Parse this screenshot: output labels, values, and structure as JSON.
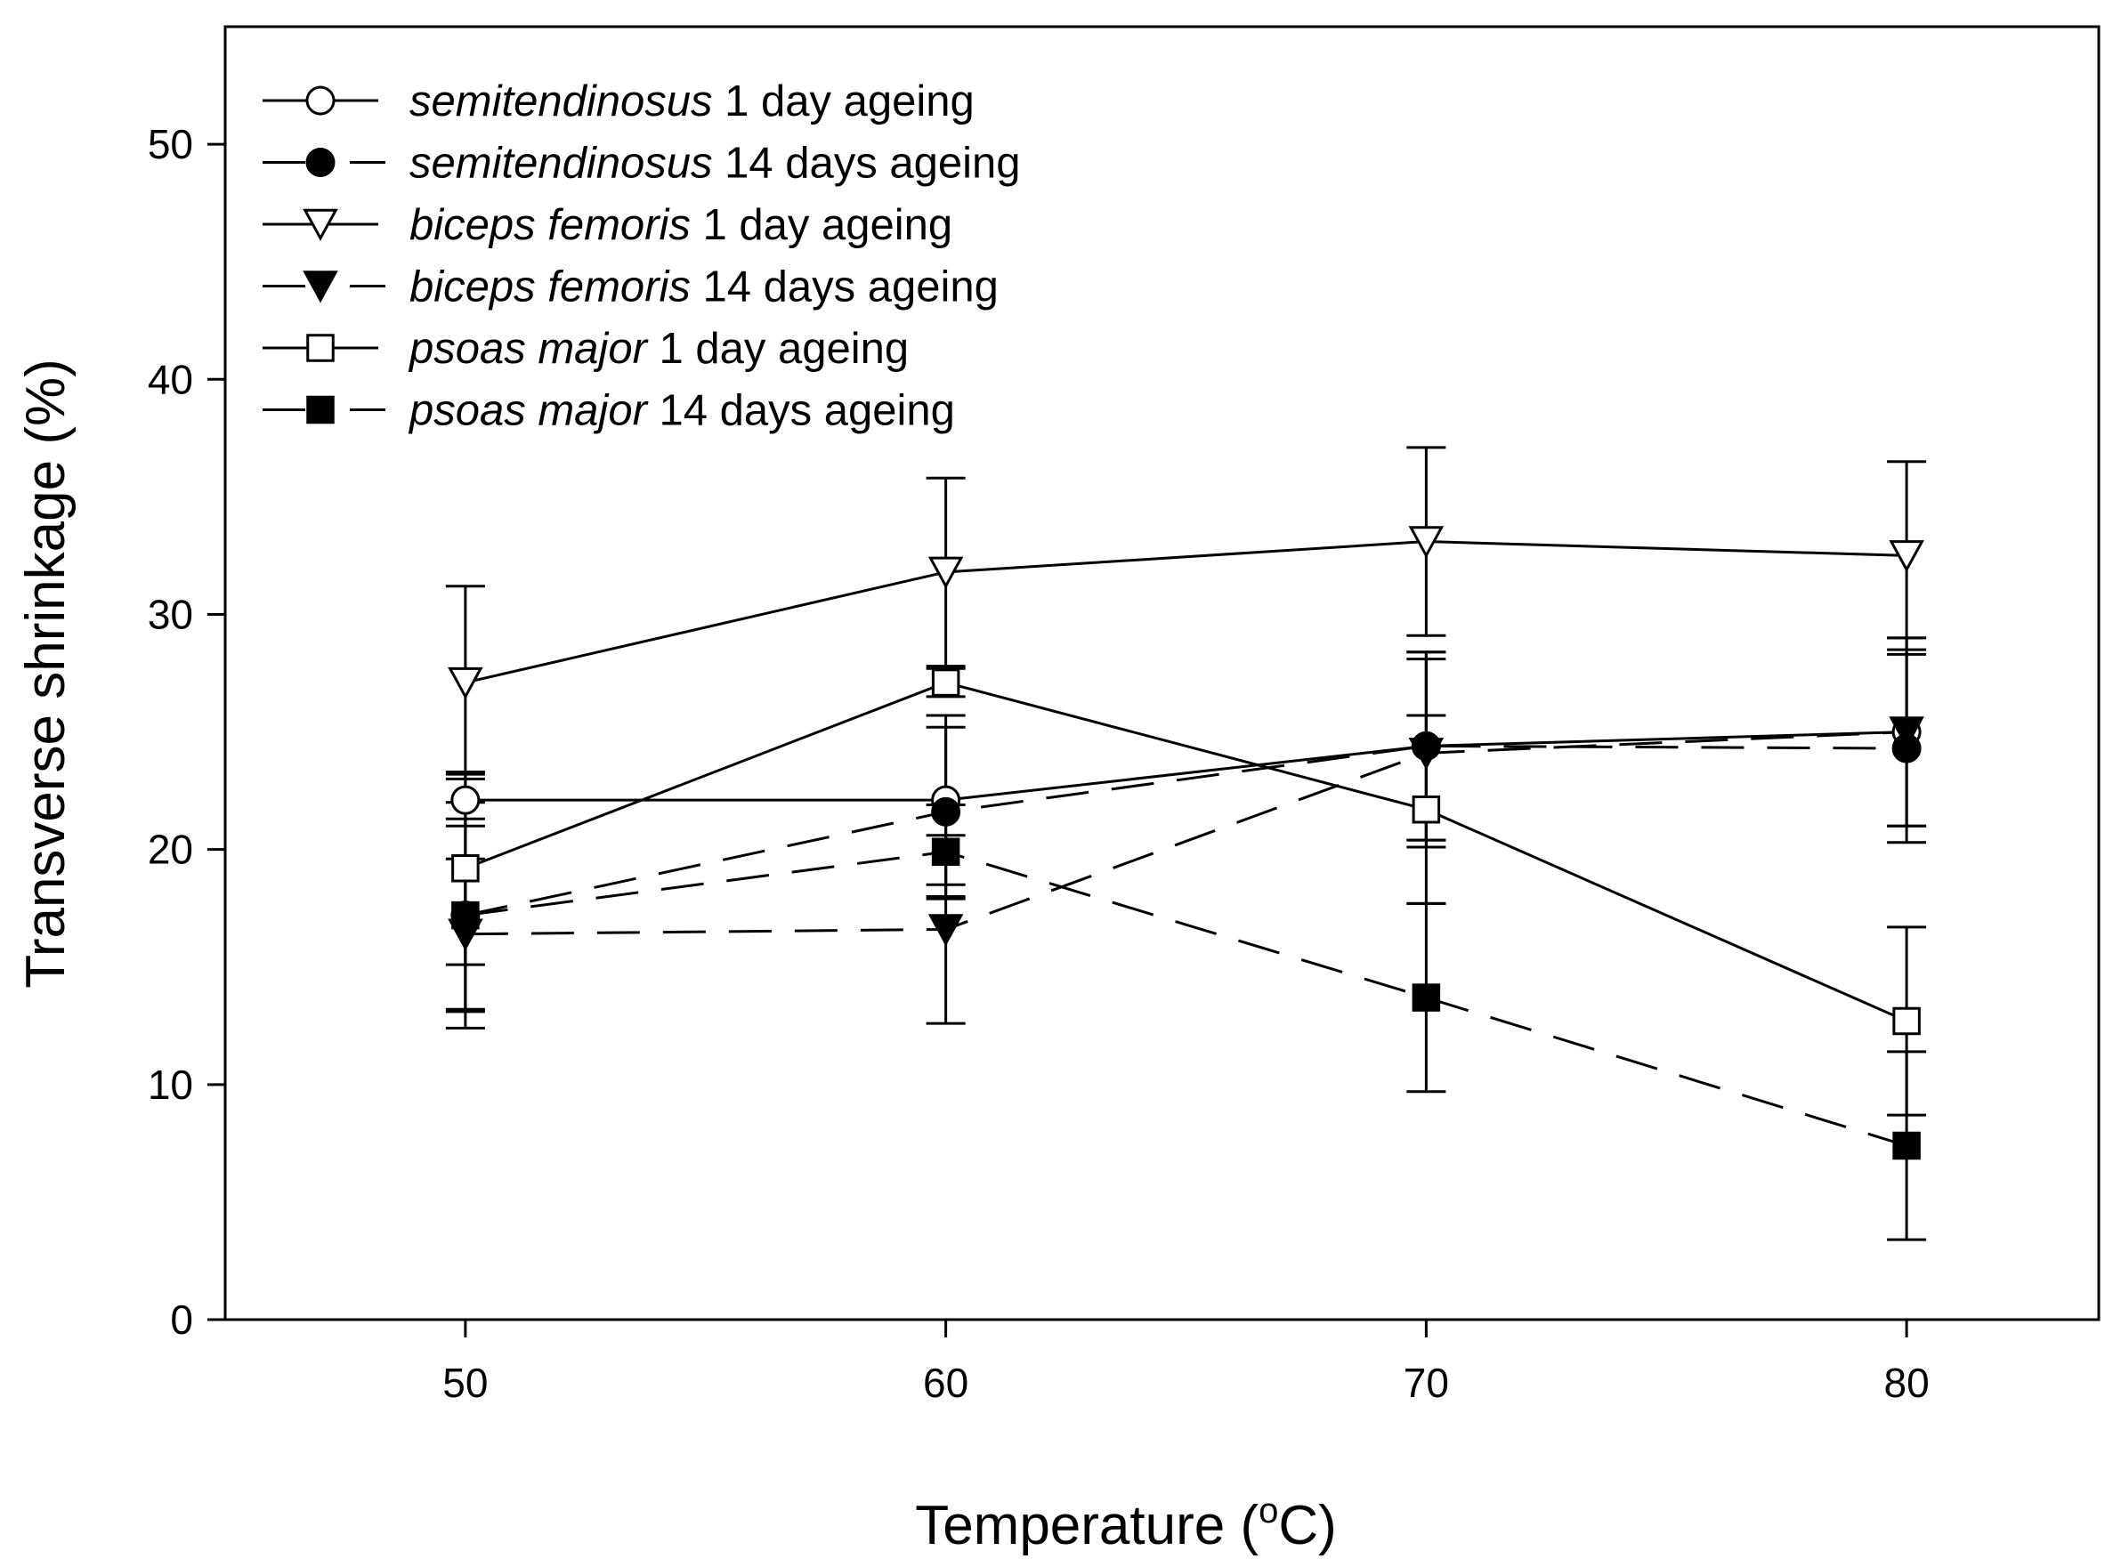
{
  "chart_data": {
    "type": "line",
    "xlabel": "Temperature (",
    "xlabel_sup": "o",
    "xlabel_end": "C)",
    "ylabel": "Transverse shrinkage (%)",
    "x": [
      50,
      60,
      70,
      80
    ],
    "xlim": [
      45,
      84
    ],
    "ylim": [
      0,
      55
    ],
    "xticks": [
      "50",
      "60",
      "70",
      "80"
    ],
    "yticks": [
      "0",
      "10",
      "20",
      "30",
      "40",
      "50"
    ],
    "legend_position": "top-left",
    "series": [
      {
        "name_italic": "semitendinosus",
        "name_rest": " 1 day ageing",
        "marker": "circle",
        "filled": false,
        "dashed": false,
        "values": [
          22.1,
          22.1,
          24.4,
          25.0
        ],
        "errors": [
          1.1,
          3.6,
          4.0,
          4.0
        ]
      },
      {
        "name_italic": "semitendinosus",
        "name_rest": " 14 days ageing",
        "marker": "circle",
        "filled": true,
        "dashed": true,
        "values": [
          17.2,
          21.6,
          24.4,
          24.3
        ],
        "errors": [
          4.8,
          3.6,
          4.0,
          4.0
        ]
      },
      {
        "name_italic": "biceps femoris",
        "name_rest": " 1 day ageing",
        "marker": "triangle-down",
        "filled": false,
        "dashed": false,
        "values": [
          27.1,
          31.8,
          33.1,
          32.5
        ],
        "errors": [
          4.1,
          4.0,
          4.0,
          4.0
        ]
      },
      {
        "name_italic": "biceps femoris",
        "name_rest": " 14 days ageing",
        "marker": "triangle-down",
        "filled": true,
        "dashed": true,
        "values": [
          16.4,
          16.6,
          24.1,
          25.0
        ],
        "errors": [
          3.2,
          4.0,
          4.0,
          4.0
        ]
      },
      {
        "name_italic": "psoas major",
        "name_rest": " 1 day ageing",
        "marker": "square",
        "filled": false,
        "dashed": false,
        "values": [
          19.2,
          27.1,
          21.7,
          12.7
        ],
        "errors": [
          4.1,
          0.6,
          4.0,
          4.0
        ]
      },
      {
        "name_italic": "psoas major",
        "name_rest": " 14 days ageing",
        "marker": "square",
        "filled": true,
        "dashed": true,
        "values": [
          17.2,
          19.9,
          13.7,
          7.4
        ],
        "errors": [
          4.1,
          2.0,
          4.0,
          4.0
        ]
      }
    ]
  }
}
